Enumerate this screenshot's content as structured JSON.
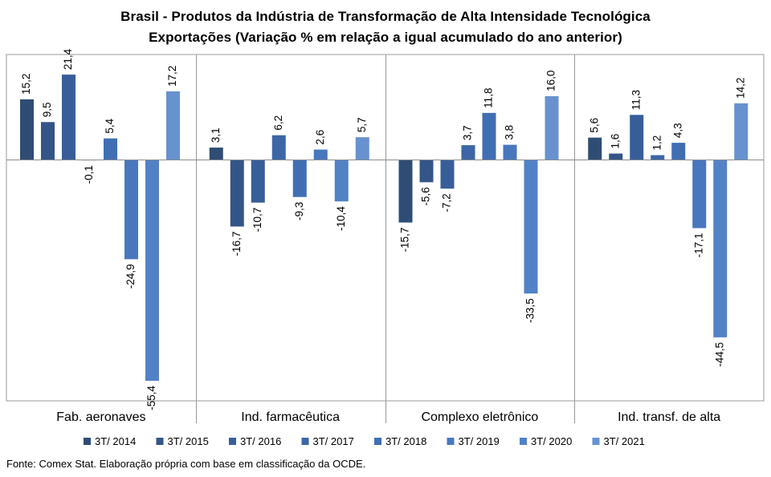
{
  "chart_data": {
    "type": "bar",
    "title": "Brasil - Produtos da Indústria de Transformação de Alta Intensidade Tecnológica",
    "subtitle": "Exportações (Variação % em relação a igual acumulado do ano anterior)",
    "categories": [
      "Fab. aeronaves",
      "Ind. farmacêutica",
      "Complexo eletrônico",
      "Ind. transf. de alta"
    ],
    "series": [
      {
        "name": "3T/ 2014",
        "color": "#2f4d74",
        "values": [
          15.2,
          3.1,
          -15.7,
          5.6
        ]
      },
      {
        "name": "3T/ 2015",
        "color": "#335587",
        "values": [
          9.5,
          -16.7,
          -5.6,
          1.6
        ]
      },
      {
        "name": "3T/ 2016",
        "color": "#375e99",
        "values": [
          21.4,
          -10.7,
          -7.2,
          11.3
        ]
      },
      {
        "name": "3T/ 2017",
        "color": "#3c66a6",
        "values": [
          -0.1,
          6.2,
          3.7,
          1.2
        ]
      },
      {
        "name": "3T/ 2018",
        "color": "#406eb3",
        "values": [
          5.4,
          -9.3,
          11.8,
          4.3
        ]
      },
      {
        "name": "3T/ 2019",
        "color": "#4877be",
        "values": [
          -24.9,
          2.6,
          3.8,
          -17.1
        ]
      },
      {
        "name": "3T/ 2020",
        "color": "#5282c6",
        "values": [
          -55.4,
          -10.4,
          -33.5,
          -44.5
        ]
      },
      {
        "name": "3T/ 2021",
        "color": "#6792cf",
        "values": [
          17.2,
          5.7,
          16.0,
          14.2
        ]
      }
    ],
    "ylim": [
      -60,
      25
    ],
    "grid": false,
    "legend": "bottom",
    "data_labels": true,
    "decimal_separator": ","
  },
  "footer": "Fonte: Comex Stat. Elaboração própria com base em classificação da OCDE."
}
